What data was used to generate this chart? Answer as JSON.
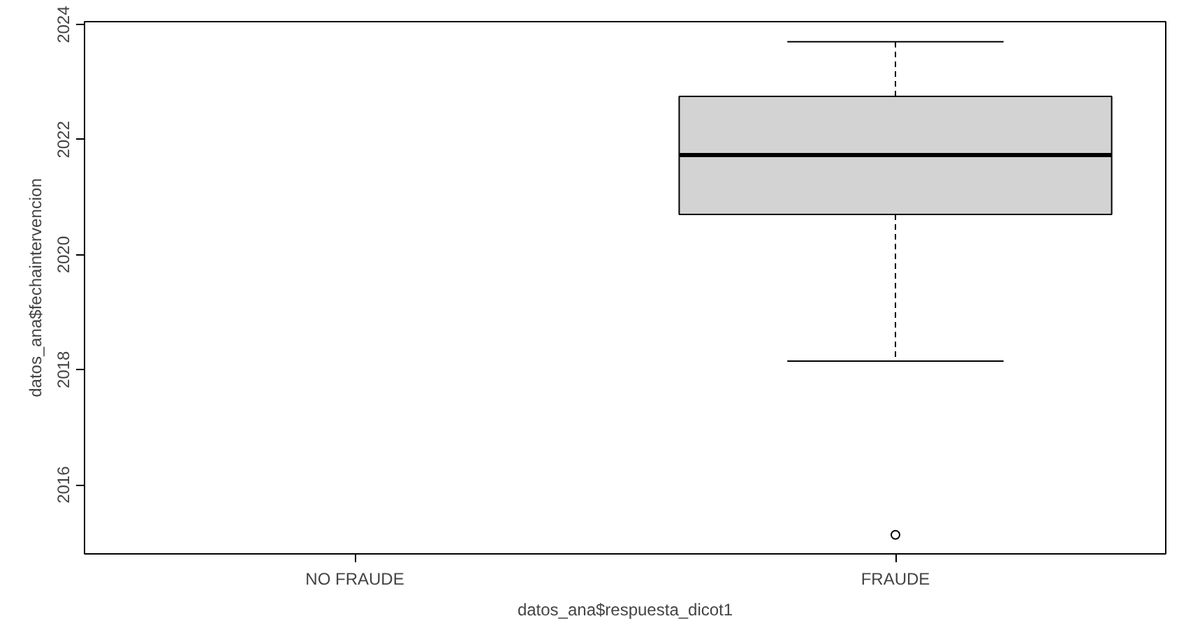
{
  "chart_data": {
    "type": "box",
    "xlabel": "datos_ana$respuesta_dicot1",
    "ylabel": "datos_ana$fechaintervencion",
    "categories": [
      "NO FRAUDE",
      "FRAUDE"
    ],
    "boxes": [
      null,
      {
        "low": 2018.15,
        "q1": 2020.7,
        "median": 2021.73,
        "q3": 2022.75,
        "high": 2023.7,
        "outliers": [
          2015.13
        ]
      }
    ],
    "color": "#d3d3d3",
    "ylim": [
      2014.8,
      2024.05
    ],
    "yticks": [
      2016,
      2018,
      2020,
      2022,
      2024
    ],
    "grid": false
  }
}
